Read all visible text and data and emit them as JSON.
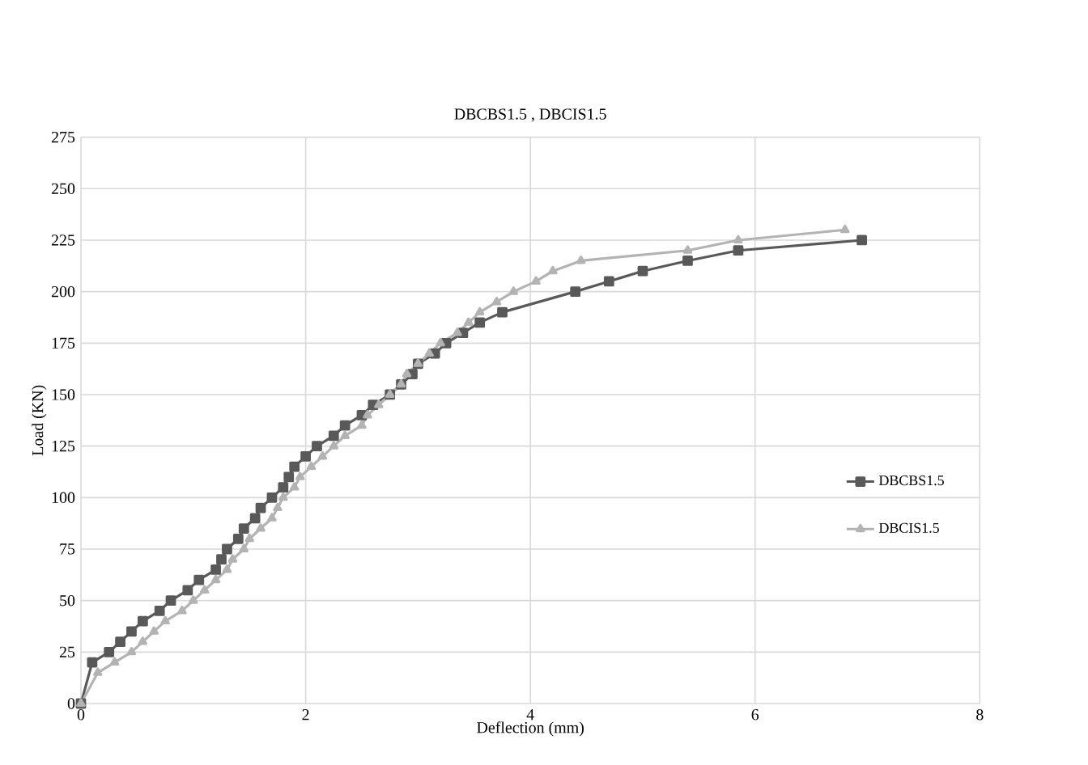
{
  "chart_data": {
    "type": "line",
    "title": "DBCBS1.5 , DBCIS1.5",
    "xlabel": "Deflection (mm)",
    "ylabel": "Load (KN)",
    "xlim": [
      0,
      8
    ],
    "xticks": [
      0,
      2,
      4,
      6,
      8
    ],
    "ylim": [
      0,
      275
    ],
    "yticks": [
      0,
      25,
      50,
      75,
      100,
      125,
      150,
      175,
      200,
      225,
      250,
      275
    ],
    "grid": true,
    "legend": "right",
    "series": [
      {
        "name": "DBCBS1.5",
        "color": "#595959",
        "marker": "square",
        "x": [
          0,
          0.1,
          0.25,
          0.35,
          0.45,
          0.55,
          0.7,
          0.8,
          0.95,
          1.05,
          1.2,
          1.25,
          1.3,
          1.4,
          1.45,
          1.55,
          1.6,
          1.7,
          1.8,
          1.85,
          1.9,
          2.0,
          2.1,
          2.25,
          2.35,
          2.5,
          2.6,
          2.75,
          2.85,
          2.95,
          3.0,
          3.15,
          3.25,
          3.4,
          3.55,
          3.75,
          4.4,
          4.7,
          5.0,
          5.4,
          5.85,
          6.95
        ],
        "values": [
          0,
          20,
          25,
          30,
          35,
          40,
          45,
          50,
          55,
          60,
          65,
          70,
          75,
          80,
          85,
          90,
          95,
          100,
          105,
          110,
          115,
          120,
          125,
          130,
          135,
          140,
          145,
          150,
          155,
          160,
          165,
          170,
          175,
          180,
          185,
          190,
          200,
          205,
          210,
          215,
          220,
          225
        ]
      },
      {
        "name": "DBCIS1.5",
        "color": "#b3b3b3",
        "marker": "triangle",
        "x": [
          0,
          0.15,
          0.3,
          0.45,
          0.55,
          0.65,
          0.75,
          0.9,
          1.0,
          1.1,
          1.2,
          1.3,
          1.35,
          1.45,
          1.5,
          1.6,
          1.7,
          1.75,
          1.8,
          1.9,
          1.95,
          2.05,
          2.15,
          2.25,
          2.35,
          2.5,
          2.55,
          2.65,
          2.75,
          2.85,
          2.9,
          3.0,
          3.1,
          3.2,
          3.35,
          3.45,
          3.55,
          3.7,
          3.85,
          4.05,
          4.2,
          4.45,
          5.4,
          5.85,
          6.8
        ],
        "values": [
          0,
          15,
          20,
          25,
          30,
          35,
          40,
          45,
          50,
          55,
          60,
          65,
          70,
          75,
          80,
          85,
          90,
          95,
          100,
          105,
          110,
          115,
          120,
          125,
          130,
          135,
          140,
          145,
          150,
          155,
          160,
          165,
          170,
          175,
          180,
          185,
          190,
          195,
          200,
          205,
          210,
          215,
          220,
          225,
          230
        ]
      }
    ]
  }
}
